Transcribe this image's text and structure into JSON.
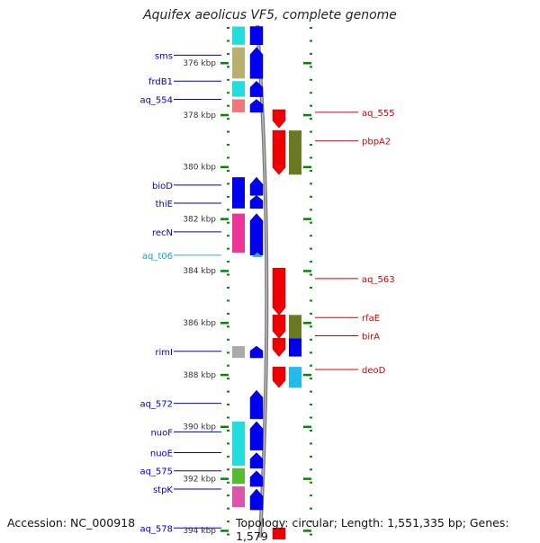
{
  "title": "Aquifex aeolicus VF5, complete genome",
  "footer": {
    "accession": "Accession: NC_000918",
    "summary": "Topology: circular; Length: 1,551,335 bp; Genes: 1,579"
  },
  "ruler": {
    "unit": "kbp",
    "ticks": [
      {
        "kbp": 376,
        "label": "376 kbp"
      },
      {
        "kbp": 378,
        "label": "378 kbp"
      },
      {
        "kbp": 380,
        "label": "380 kbp"
      },
      {
        "kbp": 382,
        "label": "382 kbp"
      },
      {
        "kbp": 384,
        "label": "384 kbp"
      },
      {
        "kbp": 386,
        "label": "386 kbp"
      },
      {
        "kbp": 388,
        "label": "388 kbp"
      },
      {
        "kbp": 390,
        "label": "390 kbp"
      },
      {
        "kbp": 392,
        "label": "392 kbp"
      },
      {
        "kbp": 394,
        "label": "394 kbp"
      }
    ]
  },
  "colors": {
    "forward_gene": "#0000ee",
    "reverse_gene": "#ee0000",
    "trna": "#33aadd",
    "ruler_tick": "#008800",
    "backbone": "#888888"
  },
  "genes_left": [
    {
      "name": "sms",
      "kbp": 375.7
    },
    {
      "name": "frdB1",
      "kbp": 376.7
    },
    {
      "name": "aq_554",
      "kbp": 377.4
    },
    {
      "name": "bioD",
      "kbp": 380.7
    },
    {
      "name": "thiE",
      "kbp": 381.4
    },
    {
      "name": "recN",
      "kbp": 382.5
    },
    {
      "name": "aq_t06",
      "kbp": 383.4,
      "kind": "trna"
    },
    {
      "name": "rimI",
      "kbp": 387.1
    },
    {
      "name": "aq_572",
      "kbp": 389.1
    },
    {
      "name": "nuoF",
      "kbp": 390.2
    },
    {
      "name": "nuoE",
      "kbp": 391.0
    },
    {
      "name": "aq_575",
      "kbp": 391.7
    },
    {
      "name": "stpK",
      "kbp": 392.4
    },
    {
      "name": "aq_578",
      "kbp": 393.9
    }
  ],
  "genes_right": [
    {
      "name": "aq_555",
      "kbp": 377.9
    },
    {
      "name": "pbpA2",
      "kbp": 379.0
    },
    {
      "name": "aq_563",
      "kbp": 384.3
    },
    {
      "name": "rfaE",
      "kbp": 385.8
    },
    {
      "name": "birA",
      "kbp": 386.5
    },
    {
      "name": "deoD",
      "kbp": 387.8
    }
  ],
  "features_forward": [
    {
      "from": 374.6,
      "to": 375.3,
      "arrow": false
    },
    {
      "from": 375.4,
      "to": 376.6,
      "arrow": true
    },
    {
      "from": 376.7,
      "to": 377.3,
      "arrow": true
    },
    {
      "from": 377.4,
      "to": 377.9,
      "arrow": true
    },
    {
      "from": 380.4,
      "to": 381.1,
      "arrow": true
    },
    {
      "from": 381.1,
      "to": 381.6,
      "arrow": true
    },
    {
      "from": 381.8,
      "to": 383.4,
      "arrow": true
    },
    {
      "from": 386.9,
      "to": 387.35,
      "arrow": true
    },
    {
      "from": 388.6,
      "to": 389.7,
      "arrow": true
    },
    {
      "from": 389.8,
      "to": 390.9,
      "arrow": true
    },
    {
      "from": 391.0,
      "to": 391.6,
      "arrow": true
    },
    {
      "from": 391.7,
      "to": 392.3,
      "arrow": true
    },
    {
      "from": 392.4,
      "to": 393.2,
      "arrow": true
    }
  ],
  "features_forward_cogs": [
    {
      "from": 374.6,
      "to": 375.3,
      "color": "#22dddd"
    },
    {
      "from": 375.4,
      "to": 376.6,
      "color": "#b8b070"
    },
    {
      "from": 376.7,
      "to": 377.3,
      "color": "#22dddd"
    },
    {
      "from": 377.4,
      "to": 377.9,
      "color": "#ee7777"
    },
    {
      "from": 380.4,
      "to": 381.6,
      "color": "#0000ee"
    },
    {
      "from": 381.8,
      "to": 383.3,
      "color": "#ee3399"
    },
    {
      "from": 386.9,
      "to": 387.35,
      "color": "#aaaaaa"
    },
    {
      "from": 389.8,
      "to": 391.5,
      "color": "#22dddd"
    },
    {
      "from": 391.6,
      "to": 392.2,
      "color": "#55bb33"
    },
    {
      "from": 392.3,
      "to": 393.1,
      "color": "#dd55aa"
    }
  ],
  "features_reverse": [
    {
      "from": 377.8,
      "to": 378.5,
      "arrow": true
    },
    {
      "from": 378.6,
      "to": 380.3,
      "arrow": true
    },
    {
      "from": 383.9,
      "to": 385.7,
      "arrow": true
    },
    {
      "from": 385.7,
      "to": 386.6,
      "arrow": true
    },
    {
      "from": 386.6,
      "to": 387.3,
      "arrow": true
    },
    {
      "from": 387.7,
      "to": 388.5,
      "arrow": true
    },
    {
      "from": 393.9,
      "to": 394.6,
      "arrow": false
    }
  ],
  "features_reverse_cogs": [
    {
      "from": 378.6,
      "to": 380.3,
      "color": "#6b7a22"
    },
    {
      "from": 385.7,
      "to": 386.6,
      "color": "#6b7a22"
    },
    {
      "from": 386.6,
      "to": 387.3,
      "color": "#0000ee"
    },
    {
      "from": 387.7,
      "to": 388.5,
      "color": "#22bbee"
    }
  ]
}
